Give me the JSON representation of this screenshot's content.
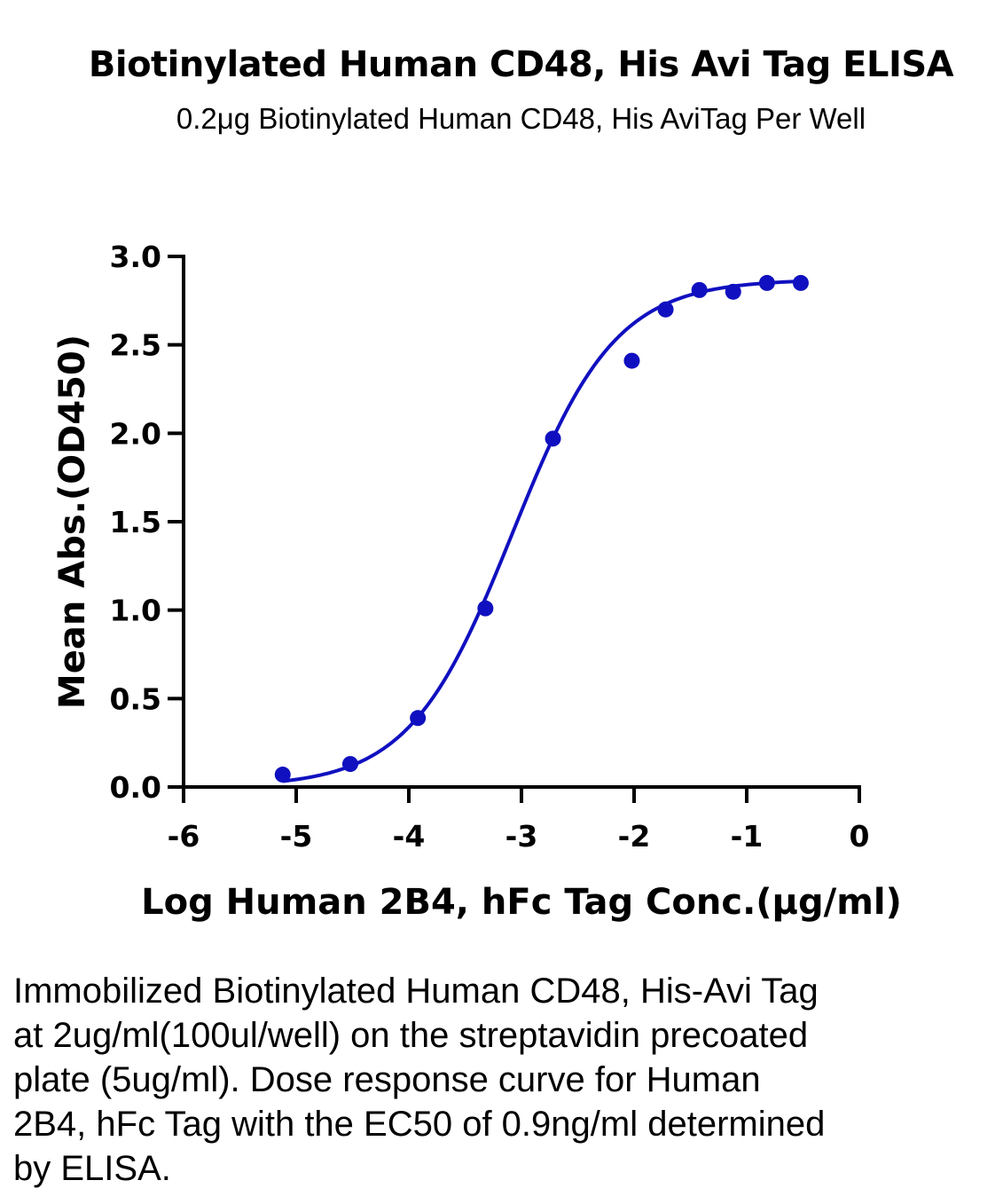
{
  "header": {
    "title": "Biotinylated Human CD48, His Avi Tag ELISA",
    "subtitle": "0.2μg Biotinylated Human CD48, His AviTag Per Well"
  },
  "chart_data": {
    "type": "scatter",
    "title": "Biotinylated Human CD48, His Avi Tag ELISA",
    "subtitle": "0.2μg Biotinylated Human CD48, His AviTag Per Well",
    "xlabel": "Log Human 2B4, hFc Tag Conc.(μg/ml)",
    "ylabel": "Mean Abs.(OD450)",
    "xlim": [
      -6,
      0
    ],
    "ylim": [
      0,
      3.0
    ],
    "x_ticks": [
      "-6",
      "-5",
      "-4",
      "-3",
      "-2",
      "-1",
      "0"
    ],
    "y_ticks": [
      "0.0",
      "0.5",
      "1.0",
      "1.5",
      "2.0",
      "2.5",
      "3.0"
    ],
    "series": [
      {
        "x": [
          -5.12,
          -4.52,
          -3.92,
          -3.32,
          -2.72,
          -2.02,
          -1.72,
          -1.42,
          -1.12,
          -0.82,
          -0.52
        ],
        "y": [
          0.07,
          0.13,
          0.39,
          1.01,
          1.97,
          2.41,
          2.7,
          2.81,
          2.8,
          2.85,
          2.85
        ],
        "color": "#1010c0"
      }
    ],
    "fit_curve": {
      "model": "4PL",
      "bottom": 0.0,
      "top": 2.87,
      "log_ec50": -3.08,
      "hill_slope": 0.95,
      "x_range": [
        -5.12,
        -0.52
      ],
      "color": "#1010c0"
    },
    "grid": false,
    "legend": "none"
  },
  "caption": "Immobilized Biotinylated Human CD48, His-Avi Tag at 2ug/ml(100ul/well) on the streptavidin precoated plate (5ug/ml). Dose response curve for Human 2B4, hFc Tag with the EC50 of 0.9ng/ml determined by ELISA."
}
